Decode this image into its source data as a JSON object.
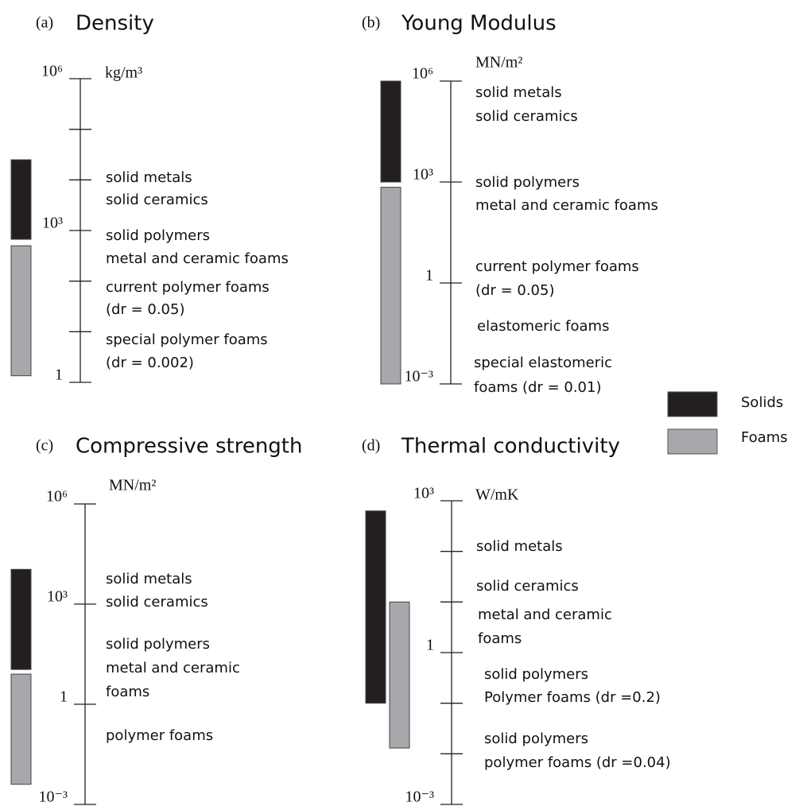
{
  "legend": [
    {
      "name": "Solids",
      "color": "#231f20"
    },
    {
      "name": "Foams",
      "color": "#a6a8ab"
    }
  ],
  "chart_data": [
    {
      "type": "range",
      "panel": "(a)",
      "title": "Density",
      "unit": "kg/m³",
      "log_scale": true,
      "ylim": [
        1,
        1000000
      ],
      "yticks": [
        1,
        {
          "value": 1000,
          "label": "10³"
        },
        {
          "value": 1000000,
          "label": "10⁶"
        }
      ],
      "minor_yticks": [
        10,
        100,
        10000,
        100000
      ],
      "series": [
        {
          "values": [
            670,
            25000
          ]
        },
        {
          "values": [
            1.35,
            500
          ]
        }
      ],
      "annotations": [
        "solid metals",
        "solid ceramics",
        "solid polymers",
        "metal and ceramic foams",
        "current polymer foams",
        "(dr = 0.05)",
        "special polymer foams",
        "(dr = 0.002)"
      ]
    },
    {
      "type": "range",
      "panel": "(b)",
      "title": "Young Modulus",
      "unit": "MN/m²",
      "log_scale": true,
      "ylim": [
        0.001,
        1000000
      ],
      "yticks": [
        {
          "value": 0.001,
          "label": "10⁻³"
        },
        1,
        {
          "value": 1000,
          "label": "10³"
        },
        {
          "value": 1000000,
          "label": "10⁶"
        }
      ],
      "minor_yticks": [],
      "series": [
        {
          "values": [
            1000,
            1000000
          ]
        },
        {
          "values": [
            0.001,
            700
          ]
        }
      ],
      "annotations": [
        "solid metals",
        "solid ceramics",
        "solid polymers",
        "metal and ceramic foams",
        "current polymer foams",
        "(dr = 0.05)",
        "elastomeric foams",
        "special elastomeric",
        "foams (dr = 0.01)"
      ]
    },
    {
      "type": "range",
      "panel": "(c)",
      "title": "Compressive strength",
      "unit": "MN/m²",
      "log_scale": true,
      "ylim": [
        0.001,
        1000000
      ],
      "yticks": [
        {
          "value": 0.001,
          "label": "10⁻³"
        },
        1,
        {
          "value": 1000,
          "label": "10³"
        },
        {
          "value": 1000000,
          "label": "10⁶"
        }
      ],
      "minor_yticks": [],
      "series": [
        {
          "values": [
            11,
            11000
          ]
        },
        {
          "values": [
            0.004,
            8
          ]
        }
      ],
      "annotations": [
        "solid metals",
        "solid ceramics",
        "solid polymers",
        "metal and ceramic",
        "foams",
        "polymer foams"
      ]
    },
    {
      "type": "range",
      "panel": "(d)",
      "title": "Thermal conductivity",
      "unit": "W/mK",
      "log_scale": true,
      "ylim": [
        0.001,
        1000
      ],
      "yticks": [
        {
          "value": 0.001,
          "label": "10⁻³"
        },
        1,
        {
          "value": 1000,
          "label": "10³"
        }
      ],
      "minor_yticks": [
        0.01,
        0.1,
        10,
        100
      ],
      "series": [
        {
          "values": [
            0.1,
            630
          ]
        },
        {
          "values": [
            0.013,
            10
          ]
        }
      ],
      "annotations": [
        "solid metals",
        "solid ceramics",
        "metal and ceramic",
        "foams",
        "solid polymers",
        "Polymer foams (dr =0.2)",
        "solid polymers",
        "polymer foams (dr =0.04)"
      ]
    }
  ]
}
